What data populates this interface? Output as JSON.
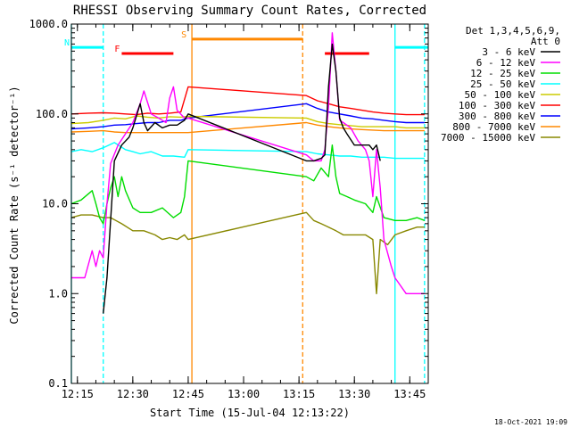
{
  "chart_data": {
    "type": "line",
    "title": "RHESSI Observing Summary Count Rates, Corrected",
    "xlabel": "Start Time (15-Jul-04 12:13:22)",
    "ylabel": "Corrected Count Rate (s⁻¹ detector⁻¹)",
    "yscale": "log",
    "ylim": [
      0.1,
      1000
    ],
    "xlim": [
      "12:13:22",
      "13:50:00"
    ],
    "x_ticks": [
      "12:15",
      "12:30",
      "12:45",
      "13:00",
      "13:15",
      "13:30",
      "13:45"
    ],
    "y_ticks": [
      "0.1",
      "1.0",
      "10.0",
      "100.0",
      "1000.0"
    ],
    "grid": false,
    "background": "#ffffff",
    "legend": {
      "placement": "right",
      "header_lines": [
        "Det 1,3,4,5,6,9,",
        "Att 0"
      ],
      "entries": [
        {
          "label": "3 - 6 keV",
          "color": "#000000"
        },
        {
          "label": "6 - 12 keV",
          "color": "#ff00ff"
        },
        {
          "label": "12 - 25 keV",
          "color": "#00dd00"
        },
        {
          "label": "25 - 50 keV",
          "color": "#00ffff"
        },
        {
          "label": "50 - 100 keV",
          "color": "#cccc00"
        },
        {
          "label": "100 - 300 keV",
          "color": "#ff0000"
        },
        {
          "label": "300 - 800 keV",
          "color": "#0000ff"
        },
        {
          "label": "800 - 7000 keV",
          "color": "#ff8800"
        },
        {
          "label": "7000 - 15000 keV",
          "color": "#888800"
        }
      ]
    },
    "flags": [
      {
        "label": "N",
        "color": "#00ffff",
        "segments": [
          [
            "12:13:22",
            "12:22"
          ],
          [
            "13:41",
            "13:50"
          ]
        ],
        "level": 550
      },
      {
        "label": "F",
        "color": "#ff0000",
        "segments": [
          [
            "12:27",
            "12:41"
          ],
          [
            "13:22",
            "13:34"
          ]
        ],
        "level": 470
      },
      {
        "label": "S",
        "color": "#ff8800",
        "segments": [
          [
            "12:46",
            "13:16"
          ]
        ],
        "level": 680
      }
    ],
    "vertical_markers": [
      {
        "time": "12:13:22",
        "color": "#00ffff",
        "style": "solid"
      },
      {
        "time": "12:22",
        "color": "#00ffff",
        "style": "dashed"
      },
      {
        "time": "12:46",
        "color": "#ff8800",
        "style": "solid"
      },
      {
        "time": "13:16",
        "color": "#ff8800",
        "style": "dashed"
      },
      {
        "time": "13:41",
        "color": "#00ffff",
        "style": "solid"
      },
      {
        "time": "13:49",
        "color": "#00ffff",
        "style": "dashed"
      }
    ],
    "series": [
      {
        "name": "3 - 6 keV",
        "color": "#000000",
        "x": [
          "12:22",
          "12:23",
          "12:25",
          "12:27",
          "12:29",
          "12:30",
          "12:32",
          "12:33",
          "12:34",
          "12:36",
          "12:38",
          "12:40",
          "12:42",
          "12:44",
          "12:45",
          "13:17",
          "13:19",
          "13:21",
          "13:22",
          "13:23",
          "13:24",
          "13:25",
          "13:26",
          "13:27",
          "13:28",
          "13:30",
          "13:32",
          "13:34",
          "13:35",
          "13:36",
          "13:37"
        ],
        "y": [
          0.6,
          1.5,
          30,
          45,
          55,
          70,
          130,
          80,
          65,
          80,
          70,
          75,
          75,
          85,
          100,
          30,
          30,
          32,
          35,
          200,
          600,
          300,
          90,
          70,
          60,
          45,
          45,
          45,
          40,
          45,
          30
        ]
      },
      {
        "name": "6 - 12 keV",
        "color": "#ff00ff",
        "x": [
          "12:13:22",
          "12:17",
          "12:19",
          "12:20",
          "12:21",
          "12:22",
          "12:23",
          "12:24",
          "12:26",
          "12:28",
          "12:30",
          "12:32",
          "12:33",
          "12:35",
          "12:37",
          "12:39",
          "12:40",
          "12:41",
          "12:42",
          "12:44",
          "12:45",
          "13:17",
          "13:19",
          "13:21",
          "13:22",
          "13:23",
          "13:24",
          "13:25",
          "13:26",
          "13:27",
          "13:29",
          "13:31",
          "13:33",
          "13:34",
          "13:35",
          "13:36",
          "13:37",
          "13:38",
          "13:40",
          "13:41",
          "13:44",
          "13:47",
          "13:48",
          "13:49"
        ],
        "y": [
          1.5,
          1.5,
          3,
          2,
          3,
          2.5,
          10,
          28,
          45,
          60,
          80,
          130,
          180,
          100,
          90,
          80,
          150,
          200,
          110,
          90,
          90,
          35,
          30,
          30,
          40,
          120,
          800,
          300,
          85,
          80,
          70,
          50,
          40,
          30,
          12,
          40,
          15,
          4,
          2,
          1.5,
          1,
          1,
          1,
          1
        ]
      },
      {
        "name": "12 - 25 keV",
        "color": "#00dd00",
        "x": [
          "12:13:22",
          "12:16",
          "12:19",
          "12:20",
          "12:21",
          "12:22",
          "12:23",
          "12:24",
          "12:25",
          "12:26",
          "12:27",
          "12:28",
          "12:30",
          "12:32",
          "12:35",
          "12:38",
          "12:41",
          "12:43",
          "12:44",
          "12:45",
          "13:17",
          "13:19",
          "13:21",
          "13:23",
          "13:24",
          "13:25",
          "13:26",
          "13:28",
          "13:30",
          "13:33",
          "13:35",
          "13:36",
          "13:38",
          "13:41",
          "13:44",
          "13:47",
          "13:49"
        ],
        "y": [
          10,
          11,
          14,
          10,
          7,
          6,
          10,
          15,
          20,
          12,
          20,
          14,
          9,
          8,
          8,
          9,
          7,
          8,
          12,
          30,
          20,
          18,
          25,
          20,
          45,
          20,
          13,
          12,
          11,
          10,
          8,
          12,
          7,
          6.5,
          6.5,
          7,
          6.5
        ]
      },
      {
        "name": "25 - 50 keV",
        "color": "#00ffff",
        "x": [
          "12:13:22",
          "12:16",
          "12:19",
          "12:22",
          "12:25",
          "12:28",
          "12:30",
          "12:32",
          "12:35",
          "12:38",
          "12:41",
          "12:44",
          "12:45",
          "13:17",
          "13:20",
          "13:23",
          "13:26",
          "13:29",
          "13:32",
          "13:35",
          "13:38",
          "13:41",
          "13:44",
          "13:47",
          "13:49"
        ],
        "y": [
          38,
          40,
          38,
          42,
          48,
          40,
          38,
          36,
          38,
          34,
          34,
          33,
          40,
          38,
          36,
          35,
          34,
          34,
          33,
          33,
          33,
          32,
          32,
          32,
          32
        ]
      },
      {
        "name": "50 - 100 keV",
        "color": "#cccc00",
        "x": [
          "12:13:22",
          "12:18",
          "12:22",
          "12:25",
          "12:28",
          "12:31",
          "12:34",
          "12:37",
          "12:40",
          "12:43",
          "12:45",
          "13:17",
          "13:20",
          "13:23",
          "13:26",
          "13:29",
          "13:32",
          "13:35",
          "13:38",
          "13:41",
          "13:44",
          "13:47",
          "13:49"
        ],
        "y": [
          78,
          80,
          85,
          90,
          88,
          95,
          92,
          90,
          93,
          92,
          94,
          90,
          82,
          78,
          76,
          74,
          72,
          72,
          72,
          72,
          70,
          70,
          70
        ]
      },
      {
        "name": "100 - 300 keV",
        "color": "#ff0000",
        "x": [
          "12:13:22",
          "12:18",
          "12:22",
          "12:25",
          "12:28",
          "12:31",
          "12:34",
          "12:37",
          "12:40",
          "12:43",
          "12:45",
          "13:17",
          "13:20",
          "13:23",
          "13:26",
          "13:29",
          "13:32",
          "13:35",
          "13:38",
          "13:41",
          "13:44",
          "13:47",
          "13:49"
        ],
        "y": [
          100,
          102,
          103,
          102,
          100,
          98,
          102,
          100,
          102,
          105,
          200,
          160,
          140,
          130,
          120,
          115,
          110,
          105,
          102,
          100,
          98,
          98,
          98
        ]
      },
      {
        "name": "300 - 800 keV",
        "color": "#0000ff",
        "x": [
          "12:13:22",
          "12:18",
          "12:22",
          "12:25",
          "12:28",
          "12:31",
          "12:34",
          "12:37",
          "12:40",
          "12:43",
          "12:45",
          "13:17",
          "13:20",
          "13:23",
          "13:26",
          "13:29",
          "13:32",
          "13:35",
          "13:38",
          "13:41",
          "13:44",
          "13:47",
          "13:49"
        ],
        "y": [
          68,
          70,
          72,
          75,
          76,
          78,
          80,
          80,
          85,
          85,
          90,
          130,
          115,
          105,
          100,
          95,
          90,
          88,
          85,
          82,
          80,
          80,
          80
        ]
      },
      {
        "name": "800 - 7000 keV",
        "color": "#ff8800",
        "x": [
          "12:13:22",
          "12:18",
          "12:22",
          "12:25",
          "12:28",
          "12:31",
          "12:34",
          "12:37",
          "12:40",
          "12:43",
          "12:45",
          "13:17",
          "13:20",
          "13:23",
          "13:26",
          "13:29",
          "13:32",
          "13:35",
          "13:38",
          "13:41",
          "13:44",
          "13:47",
          "13:49"
        ],
        "y": [
          63,
          64,
          65,
          63,
          62,
          62,
          62,
          62,
          62,
          62,
          62,
          80,
          75,
          72,
          70,
          68,
          67,
          66,
          65,
          65,
          65,
          65,
          65
        ]
      },
      {
        "name": "7000 - 15000 keV",
        "color": "#888800",
        "x": [
          "12:13:22",
          "12:16",
          "12:19",
          "12:22",
          "12:24",
          "12:27",
          "12:30",
          "12:33",
          "12:36",
          "12:38",
          "12:40",
          "12:42",
          "12:44",
          "12:45",
          "13:17",
          "13:19",
          "13:21",
          "13:23",
          "13:25",
          "13:27",
          "13:29",
          "13:31",
          "13:33",
          "13:35",
          "13:36",
          "13:37",
          "13:39",
          "13:41",
          "13:44",
          "13:47",
          "13:49"
        ],
        "y": [
          7,
          7.5,
          7.5,
          7,
          7,
          6,
          5,
          5,
          4.5,
          4,
          4.2,
          4,
          4.5,
          4,
          8,
          6.5,
          6,
          5.5,
          5,
          4.5,
          4.5,
          4.5,
          4.5,
          4,
          1,
          4,
          3.5,
          4.5,
          5,
          5.5,
          5.5
        ]
      }
    ]
  },
  "footer": {
    "timestamp": "18-Oct-2021 19:09"
  }
}
